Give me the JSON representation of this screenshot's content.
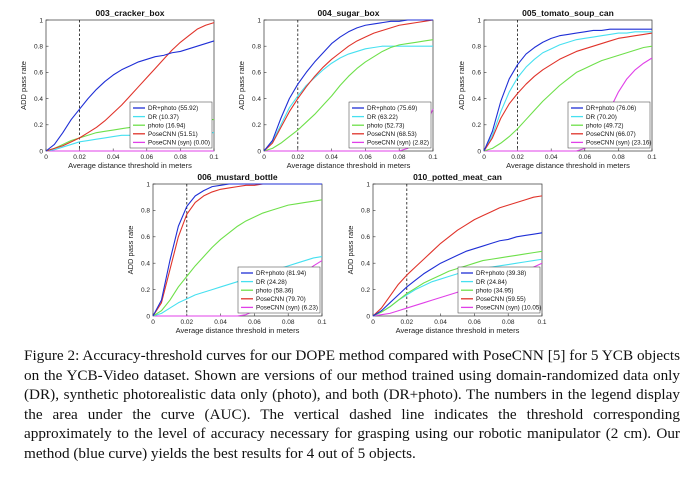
{
  "caption": "Figure 2: Accuracy-threshold curves for our DOPE method compared with PoseCNN [5] for 5 YCB objects on the YCB-Video dataset. Shown are versions of our method trained using domain-randomized data only (DR), synthetic photorealistic data only (photo), and both (DR+photo). The numbers in the legend display the area under the curve (AUC). The vertical dashed line indicates the threshold corresponding approximately to the level of accuracy necessary for grasping using our robotic manipulator (2 cm). Our method (blue curve) yields the best results for 4 out of 5 objects.",
  "colors": {
    "DR+photo": "#1f2fd6",
    "DR": "#46e0f0",
    "photo": "#6ee04a",
    "PoseCNN": "#e0332a",
    "PoseCNN (syn)": "#e040e8"
  },
  "chart_data": [
    {
      "type": "line",
      "title": "003_cracker_box",
      "xlabel": "Average distance threshold in meters",
      "ylabel": "ADD pass rate",
      "xlim": [
        0,
        0.1
      ],
      "ylim": [
        0,
        1
      ],
      "xticks": [
        "0",
        "0.02",
        "0.04",
        "0.06",
        "0.08",
        "0.1"
      ],
      "yticks": [
        "0",
        "0.2",
        "0.4",
        "0.6",
        "0.8",
        "1"
      ],
      "threshold": 0.02,
      "legend_position": "bottom-right",
      "x": [
        0,
        0.005,
        0.01,
        0.015,
        0.02,
        0.025,
        0.03,
        0.035,
        0.04,
        0.045,
        0.05,
        0.055,
        0.06,
        0.065,
        0.07,
        0.075,
        0.08,
        0.085,
        0.09,
        0.095,
        0.1
      ],
      "series": [
        {
          "name": "DR+photo",
          "label": "DR+photo (55.92)",
          "values": [
            0,
            0.05,
            0.14,
            0.24,
            0.32,
            0.4,
            0.47,
            0.53,
            0.58,
            0.62,
            0.65,
            0.68,
            0.7,
            0.72,
            0.73,
            0.75,
            0.76,
            0.78,
            0.8,
            0.82,
            0.84
          ]
        },
        {
          "name": "DR",
          "label": "DR (10.37)",
          "values": [
            0,
            0.01,
            0.03,
            0.05,
            0.07,
            0.08,
            0.09,
            0.1,
            0.11,
            0.12,
            0.12,
            0.13,
            0.13,
            0.13,
            0.13,
            0.14,
            0.14,
            0.14,
            0.14,
            0.14,
            0.14
          ]
        },
        {
          "name": "photo",
          "label": "photo (16.94)",
          "values": [
            0,
            0.02,
            0.05,
            0.08,
            0.1,
            0.12,
            0.14,
            0.15,
            0.16,
            0.17,
            0.18,
            0.19,
            0.2,
            0.2,
            0.21,
            0.22,
            0.22,
            0.23,
            0.23,
            0.24,
            0.24
          ]
        },
        {
          "name": "PoseCNN",
          "label": "PoseCNN (51.51)",
          "values": [
            0,
            0.02,
            0.04,
            0.07,
            0.1,
            0.14,
            0.18,
            0.23,
            0.29,
            0.35,
            0.42,
            0.49,
            0.56,
            0.63,
            0.7,
            0.77,
            0.83,
            0.88,
            0.93,
            0.96,
            0.98
          ]
        },
        {
          "name": "PoseCNN (syn)",
          "label": "PoseCNN (syn) (0.00)",
          "values": [
            0,
            0,
            0,
            0,
            0,
            0,
            0,
            0,
            0,
            0,
            0,
            0,
            0,
            0,
            0,
            0,
            0,
            0,
            0,
            0,
            0
          ]
        }
      ]
    },
    {
      "type": "line",
      "title": "004_sugar_box",
      "xlabel": "Average distance threshold in meters",
      "ylabel": "ADD pass rate",
      "xlim": [
        0,
        0.1
      ],
      "ylim": [
        0,
        1
      ],
      "xticks": [
        "0",
        "0.02",
        "0.04",
        "0.06",
        "0.08",
        "0.1"
      ],
      "yticks": [
        "0",
        "0.2",
        "0.4",
        "0.6",
        "0.8",
        "1"
      ],
      "threshold": 0.02,
      "legend_position": "bottom-right",
      "x": [
        0,
        0.005,
        0.01,
        0.015,
        0.02,
        0.025,
        0.03,
        0.035,
        0.04,
        0.045,
        0.05,
        0.055,
        0.06,
        0.065,
        0.07,
        0.075,
        0.08,
        0.085,
        0.09,
        0.095,
        0.1
      ],
      "series": [
        {
          "name": "DR+photo",
          "label": "DR+photo (75.69)",
          "values": [
            0,
            0.08,
            0.25,
            0.4,
            0.51,
            0.6,
            0.68,
            0.75,
            0.82,
            0.87,
            0.91,
            0.94,
            0.96,
            0.97,
            0.98,
            0.99,
            0.99,
            1,
            1,
            1,
            1
          ]
        },
        {
          "name": "DR",
          "label": "DR (63.22)",
          "values": [
            0,
            0.07,
            0.2,
            0.33,
            0.42,
            0.5,
            0.56,
            0.62,
            0.67,
            0.71,
            0.74,
            0.76,
            0.78,
            0.79,
            0.8,
            0.8,
            0.8,
            0.8,
            0.8,
            0.8,
            0.8
          ]
        },
        {
          "name": "photo",
          "label": "photo (52.73)",
          "values": [
            0,
            0.02,
            0.06,
            0.11,
            0.16,
            0.22,
            0.28,
            0.35,
            0.42,
            0.5,
            0.57,
            0.63,
            0.68,
            0.72,
            0.76,
            0.79,
            0.81,
            0.82,
            0.83,
            0.84,
            0.85
          ]
        },
        {
          "name": "PoseCNN",
          "label": "PoseCNN (68.53)",
          "values": [
            0,
            0.06,
            0.18,
            0.3,
            0.4,
            0.49,
            0.57,
            0.64,
            0.7,
            0.75,
            0.8,
            0.84,
            0.87,
            0.9,
            0.92,
            0.94,
            0.96,
            0.97,
            0.98,
            0.99,
            1
          ]
        },
        {
          "name": "PoseCNN (syn)",
          "label": "PoseCNN (syn) (2.82)",
          "values": [
            0,
            0,
            0,
            0,
            0,
            0,
            0,
            0,
            0,
            0,
            0,
            0,
            0,
            0,
            0,
            0,
            0,
            0.02,
            0.08,
            0.18,
            0.32
          ]
        }
      ]
    },
    {
      "type": "line",
      "title": "005_tomato_soup_can",
      "xlabel": "Average distance threshold in meters",
      "ylabel": "ADD pass rate",
      "xlim": [
        0,
        0.1
      ],
      "ylim": [
        0,
        1
      ],
      "xticks": [
        "0",
        "0.02",
        "0.04",
        "0.06",
        "0.08",
        "0.1"
      ],
      "yticks": [
        "0",
        "0.2",
        "0.4",
        "0.6",
        "0.8",
        "1"
      ],
      "threshold": 0.02,
      "legend_position": "bottom-right",
      "x": [
        0,
        0.005,
        0.01,
        0.015,
        0.02,
        0.025,
        0.03,
        0.035,
        0.04,
        0.045,
        0.05,
        0.055,
        0.06,
        0.065,
        0.07,
        0.075,
        0.08,
        0.085,
        0.09,
        0.095,
        0.1
      ],
      "series": [
        {
          "name": "DR+photo",
          "label": "DR+photo (76.06)",
          "values": [
            0,
            0.15,
            0.38,
            0.55,
            0.66,
            0.74,
            0.79,
            0.83,
            0.86,
            0.88,
            0.89,
            0.9,
            0.91,
            0.92,
            0.92,
            0.93,
            0.93,
            0.93,
            0.93,
            0.93,
            0.93
          ]
        },
        {
          "name": "DR",
          "label": "DR (70.20)",
          "values": [
            0,
            0.12,
            0.3,
            0.45,
            0.56,
            0.64,
            0.7,
            0.75,
            0.78,
            0.81,
            0.83,
            0.85,
            0.86,
            0.87,
            0.88,
            0.89,
            0.9,
            0.9,
            0.91,
            0.91,
            0.91
          ]
        },
        {
          "name": "photo",
          "label": "photo (49.72)",
          "values": [
            0,
            0.02,
            0.06,
            0.11,
            0.17,
            0.24,
            0.31,
            0.38,
            0.44,
            0.5,
            0.55,
            0.6,
            0.63,
            0.66,
            0.69,
            0.71,
            0.73,
            0.75,
            0.77,
            0.79,
            0.8
          ]
        },
        {
          "name": "PoseCNN",
          "label": "PoseCNN (66.07)",
          "values": [
            0,
            0.1,
            0.25,
            0.36,
            0.44,
            0.51,
            0.57,
            0.62,
            0.66,
            0.7,
            0.73,
            0.76,
            0.78,
            0.8,
            0.82,
            0.84,
            0.86,
            0.87,
            0.88,
            0.89,
            0.9
          ]
        },
        {
          "name": "PoseCNN (syn)",
          "label": "PoseCNN (syn) (23.16)",
          "values": [
            0,
            0,
            0,
            0,
            0,
            0,
            0,
            0,
            0,
            0,
            0,
            0,
            0.02,
            0.08,
            0.18,
            0.32,
            0.45,
            0.55,
            0.62,
            0.67,
            0.71
          ]
        }
      ]
    },
    {
      "type": "line",
      "title": "006_mustard_bottle",
      "xlabel": "Average distance threshold in meters",
      "ylabel": "ADD pass rate",
      "xlim": [
        0,
        0.1
      ],
      "ylim": [
        0,
        1
      ],
      "xticks": [
        "0",
        "0.02",
        "0.04",
        "0.06",
        "0.08",
        "0.1"
      ],
      "yticks": [
        "0",
        "0.2",
        "0.4",
        "0.6",
        "0.8",
        "1"
      ],
      "threshold": 0.02,
      "legend_position": "bottom-right",
      "x": [
        0,
        0.005,
        0.01,
        0.015,
        0.02,
        0.025,
        0.03,
        0.035,
        0.04,
        0.045,
        0.05,
        0.055,
        0.06,
        0.065,
        0.07,
        0.075,
        0.08,
        0.085,
        0.09,
        0.095,
        0.1
      ],
      "series": [
        {
          "name": "DR+photo",
          "label": "DR+photo (81.94)",
          "values": [
            0,
            0.12,
            0.42,
            0.68,
            0.83,
            0.91,
            0.95,
            0.98,
            0.99,
            1,
            1,
            1,
            1,
            1,
            1,
            1,
            1,
            1,
            1,
            1,
            1
          ]
        },
        {
          "name": "DR",
          "label": "DR (24.28)",
          "values": [
            0,
            0.02,
            0.06,
            0.1,
            0.13,
            0.16,
            0.18,
            0.2,
            0.22,
            0.24,
            0.26,
            0.28,
            0.3,
            0.32,
            0.34,
            0.36,
            0.38,
            0.4,
            0.42,
            0.44,
            0.45
          ]
        },
        {
          "name": "photo",
          "label": "photo (58.36)",
          "values": [
            0,
            0.04,
            0.12,
            0.22,
            0.3,
            0.38,
            0.45,
            0.52,
            0.58,
            0.63,
            0.68,
            0.72,
            0.75,
            0.78,
            0.8,
            0.82,
            0.84,
            0.85,
            0.86,
            0.87,
            0.88
          ]
        },
        {
          "name": "PoseCNN",
          "label": "PoseCNN (79.70)",
          "values": [
            0,
            0.1,
            0.35,
            0.6,
            0.77,
            0.86,
            0.91,
            0.94,
            0.96,
            0.97,
            0.98,
            0.99,
            0.99,
            1,
            1,
            1,
            1,
            1,
            1,
            1,
            1
          ]
        },
        {
          "name": "PoseCNN (syn)",
          "label": "PoseCNN (syn) (6.23)",
          "values": [
            0,
            0,
            0,
            0,
            0,
            0,
            0,
            0,
            0,
            0,
            0,
            0.01,
            0.04,
            0.08,
            0.12,
            0.17,
            0.22,
            0.28,
            0.33,
            0.38,
            0.42
          ]
        }
      ]
    },
    {
      "type": "line",
      "title": "010_potted_meat_can",
      "xlabel": "Average distance threshold in meters",
      "ylabel": "ADD pass rate",
      "xlim": [
        0,
        0.1
      ],
      "ylim": [
        0,
        1
      ],
      "xticks": [
        "0",
        "0.02",
        "0.04",
        "0.06",
        "0.08",
        "0.1"
      ],
      "yticks": [
        "0",
        "0.2",
        "0.4",
        "0.6",
        "0.8",
        "1"
      ],
      "threshold": 0.02,
      "legend_position": "bottom-right",
      "x": [
        0,
        0.005,
        0.01,
        0.015,
        0.02,
        0.025,
        0.03,
        0.035,
        0.04,
        0.045,
        0.05,
        0.055,
        0.06,
        0.065,
        0.07,
        0.075,
        0.08,
        0.085,
        0.09,
        0.095,
        0.1
      ],
      "series": [
        {
          "name": "DR+photo",
          "label": "DR+photo (39.38)",
          "values": [
            0,
            0.04,
            0.1,
            0.16,
            0.22,
            0.27,
            0.32,
            0.36,
            0.4,
            0.43,
            0.46,
            0.49,
            0.51,
            0.53,
            0.55,
            0.57,
            0.58,
            0.6,
            0.61,
            0.62,
            0.63
          ]
        },
        {
          "name": "DR",
          "label": "DR (24.84)",
          "values": [
            0,
            0.03,
            0.07,
            0.12,
            0.16,
            0.2,
            0.23,
            0.26,
            0.28,
            0.3,
            0.32,
            0.34,
            0.35,
            0.36,
            0.37,
            0.38,
            0.39,
            0.4,
            0.41,
            0.42,
            0.43
          ]
        },
        {
          "name": "photo",
          "label": "photo (34.95)",
          "values": [
            0,
            0.03,
            0.07,
            0.12,
            0.17,
            0.21,
            0.25,
            0.28,
            0.31,
            0.34,
            0.36,
            0.38,
            0.4,
            0.42,
            0.43,
            0.44,
            0.45,
            0.46,
            0.47,
            0.48,
            0.49
          ]
        },
        {
          "name": "PoseCNN",
          "label": "PoseCNN (59.55)",
          "values": [
            0,
            0.06,
            0.15,
            0.24,
            0.31,
            0.37,
            0.43,
            0.49,
            0.55,
            0.6,
            0.65,
            0.69,
            0.73,
            0.76,
            0.79,
            0.82,
            0.84,
            0.86,
            0.88,
            0.9,
            0.91
          ]
        },
        {
          "name": "PoseCNN (syn)",
          "label": "PoseCNN (syn) (10.05)",
          "values": [
            0,
            0.01,
            0.02,
            0.04,
            0.06,
            0.08,
            0.1,
            0.12,
            0.14,
            0.16,
            0.18,
            0.2,
            0.22,
            0.24,
            0.26,
            0.28,
            0.3,
            0.32,
            0.34,
            0.37,
            0.4
          ]
        }
      ]
    }
  ]
}
